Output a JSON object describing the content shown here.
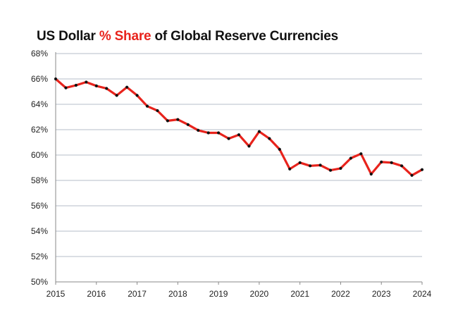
{
  "chart_data": {
    "type": "line",
    "title_parts": [
      "US Dollar ",
      "% Share",
      " of Global Reserve Currencies"
    ],
    "title_highlight_color": "#e8231c",
    "line_color": "#e8231c",
    "marker_color": "#111111",
    "ylim": [
      50,
      68
    ],
    "yticks": [
      50,
      52,
      54,
      56,
      58,
      60,
      62,
      64,
      66,
      68
    ],
    "ytick_labels": [
      "50%",
      "52%",
      "54%",
      "56%",
      "58%",
      "60%",
      "62%",
      "64%",
      "66%",
      "68%"
    ],
    "xlim": [
      2015,
      2024
    ],
    "xticks": [
      2015,
      2016,
      2017,
      2018,
      2019,
      2020,
      2021,
      2022,
      2023,
      2024
    ],
    "xtick_labels": [
      "2015",
      "2016",
      "2017",
      "2018",
      "2019",
      "2020",
      "2021",
      "2022",
      "2023",
      "2024"
    ],
    "grid": "horizontal",
    "series": [
      {
        "x": [
          2015.0,
          2015.25,
          2015.5,
          2015.75,
          2016.0,
          2016.25,
          2016.5,
          2016.75,
          2017.0,
          2017.25,
          2017.5,
          2017.75,
          2018.0,
          2018.25,
          2018.5,
          2018.75,
          2019.0,
          2019.25,
          2019.5,
          2019.75,
          2020.0,
          2020.25,
          2020.5,
          2020.75,
          2021.0,
          2021.25,
          2021.5,
          2021.75,
          2022.0,
          2022.25,
          2022.5,
          2022.75,
          2023.0,
          2023.25,
          2023.5,
          2023.75,
          2024.0
        ],
        "values": [
          66.0,
          65.3,
          65.5,
          65.75,
          65.45,
          65.25,
          64.7,
          65.35,
          64.7,
          63.85,
          63.5,
          62.7,
          62.8,
          62.4,
          61.95,
          61.75,
          61.75,
          61.3,
          61.6,
          60.7,
          61.85,
          61.3,
          60.45,
          58.9,
          59.4,
          59.15,
          59.2,
          58.8,
          58.95,
          59.75,
          60.1,
          58.5,
          59.45,
          59.4,
          59.15,
          58.4,
          58.85
        ]
      }
    ]
  }
}
